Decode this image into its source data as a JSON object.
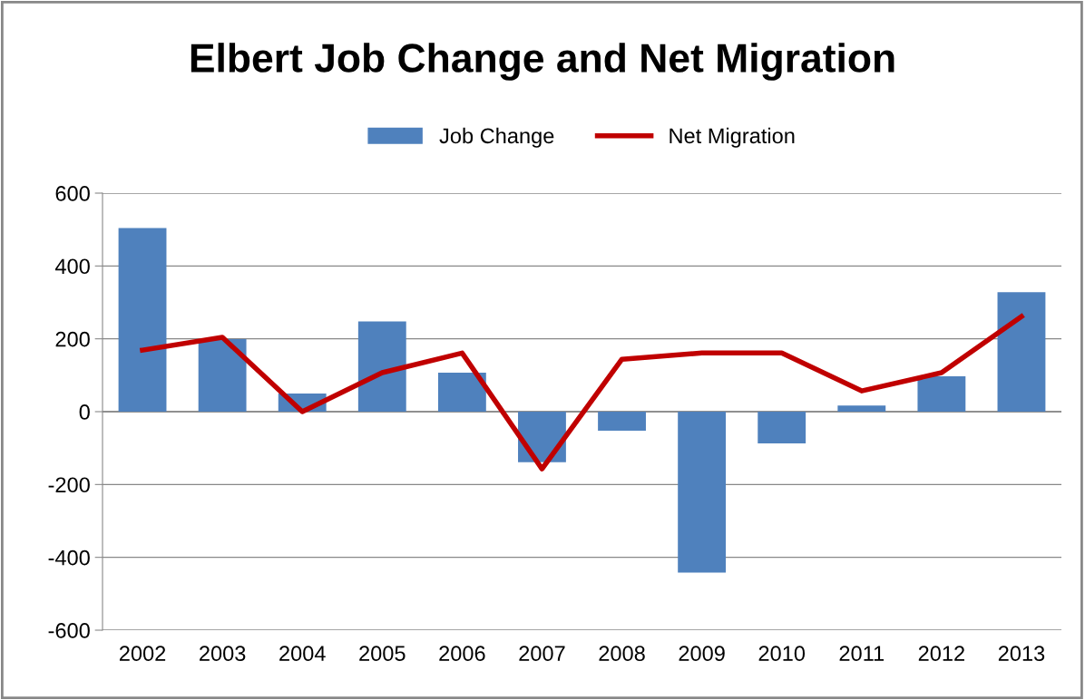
{
  "chart_data": {
    "type": "bar",
    "title": "Elbert Job Change and Net Migration",
    "categories": [
      "2002",
      "2003",
      "2004",
      "2005",
      "2006",
      "2007",
      "2008",
      "2009",
      "2010",
      "2011",
      "2012",
      "2013"
    ],
    "series": [
      {
        "name": "Job Change",
        "color": "#4f81bd",
        "values": [
          504,
          199,
          50,
          248,
          107,
          -139,
          -52,
          -442,
          -87,
          17,
          97,
          328
        ]
      },
      {
        "name": "Net Migration",
        "type": "line",
        "color": "#c00000",
        "values": [
          169,
          204,
          0,
          107,
          161,
          -157,
          144,
          161,
          161,
          57,
          107,
          261
        ]
      }
    ],
    "ylim": [
      -600,
      600
    ],
    "yticks": [
      -600,
      -400,
      -200,
      0,
      200,
      400,
      600
    ],
    "grid": "y",
    "legend": "top",
    "marker": "none"
  }
}
